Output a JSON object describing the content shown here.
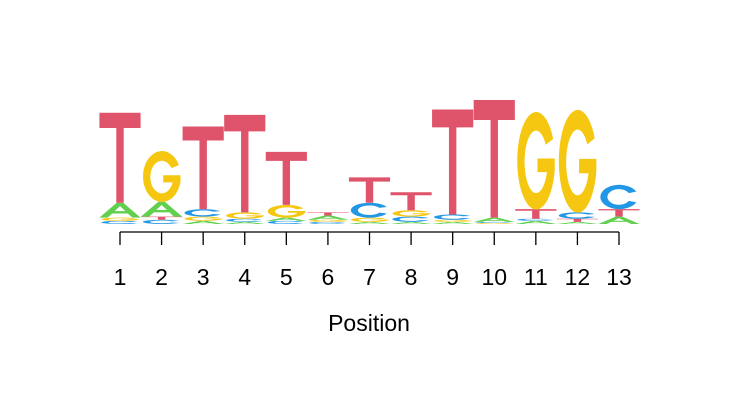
{
  "chart_data": {
    "type": "sequence-logo",
    "xlabel": "Position",
    "ylabel": "",
    "title": "",
    "colors": {
      "A": "#61d04f",
      "C": "#2297e6",
      "G": "#f5c710",
      "T": "#df536b"
    },
    "positions": [
      {
        "position": "1",
        "letters": [
          {
            "base": "C",
            "bits": 0.03
          },
          {
            "base": "G",
            "bits": 0.03
          },
          {
            "base": "A",
            "bits": 0.14
          },
          {
            "base": "T",
            "bits": 0.85
          }
        ]
      },
      {
        "position": "2",
        "letters": [
          {
            "base": "C",
            "bits": 0.04
          },
          {
            "base": "T",
            "bits": 0.03
          },
          {
            "base": "A",
            "bits": 0.14
          },
          {
            "base": "G",
            "bits": 0.48
          }
        ]
      },
      {
        "position": "3",
        "letters": [
          {
            "base": "A",
            "bits": 0.03
          },
          {
            "base": "G",
            "bits": 0.04
          },
          {
            "base": "C",
            "bits": 0.07
          },
          {
            "base": "T",
            "bits": 0.78
          }
        ]
      },
      {
        "position": "4",
        "letters": [
          {
            "base": "A",
            "bits": 0.02
          },
          {
            "base": "C",
            "bits": 0.03
          },
          {
            "base": "G",
            "bits": 0.06
          },
          {
            "base": "T",
            "bits": 0.92
          }
        ]
      },
      {
        "position": "5",
        "letters": [
          {
            "base": "C",
            "bits": 0.03
          },
          {
            "base": "A",
            "bits": 0.03
          },
          {
            "base": "G",
            "bits": 0.12
          },
          {
            "base": "T",
            "bits": 0.5
          }
        ]
      },
      {
        "position": "6",
        "letters": [
          {
            "base": "C",
            "bits": 0.02
          },
          {
            "base": "G",
            "bits": 0.02
          },
          {
            "base": "A",
            "bits": 0.04
          },
          {
            "base": "T",
            "bits": 0.03
          }
        ]
      },
      {
        "position": "7",
        "letters": [
          {
            "base": "A",
            "bits": 0.02
          },
          {
            "base": "G",
            "bits": 0.04
          },
          {
            "base": "C",
            "bits": 0.14
          },
          {
            "base": "T",
            "bits": 0.24
          }
        ]
      },
      {
        "position": "8",
        "letters": [
          {
            "base": "A",
            "bits": 0.02
          },
          {
            "base": "C",
            "bits": 0.05
          },
          {
            "base": "G",
            "bits": 0.06
          },
          {
            "base": "T",
            "bits": 0.17
          }
        ]
      },
      {
        "position": "9",
        "letters": [
          {
            "base": "A",
            "bits": 0.02
          },
          {
            "base": "G",
            "bits": 0.02
          },
          {
            "base": "C",
            "bits": 0.05
          },
          {
            "base": "T",
            "bits": 0.99
          }
        ]
      },
      {
        "position": "10",
        "letters": [
          {
            "base": "G",
            "bits": 0.01
          },
          {
            "base": "C",
            "bits": 0.01
          },
          {
            "base": "A",
            "bits": 0.04
          },
          {
            "base": "T",
            "bits": 1.11
          }
        ]
      },
      {
        "position": "11",
        "letters": [
          {
            "base": "A",
            "bits": 0.03
          },
          {
            "base": "C",
            "bits": 0.02
          },
          {
            "base": "T",
            "bits": 0.09
          },
          {
            "base": "G",
            "bits": 0.92
          }
        ]
      },
      {
        "position": "12",
        "letters": [
          {
            "base": "A",
            "bits": 0.02
          },
          {
            "base": "T",
            "bits": 0.03
          },
          {
            "base": "C",
            "bits": 0.06
          },
          {
            "base": "G",
            "bits": 0.97
          }
        ]
      },
      {
        "position": "13",
        "letters": [
          {
            "base": "A",
            "bits": 0.07
          },
          {
            "base": "T",
            "bits": 0.07
          },
          {
            "base": "C",
            "bits": 0.23
          }
        ]
      }
    ]
  }
}
